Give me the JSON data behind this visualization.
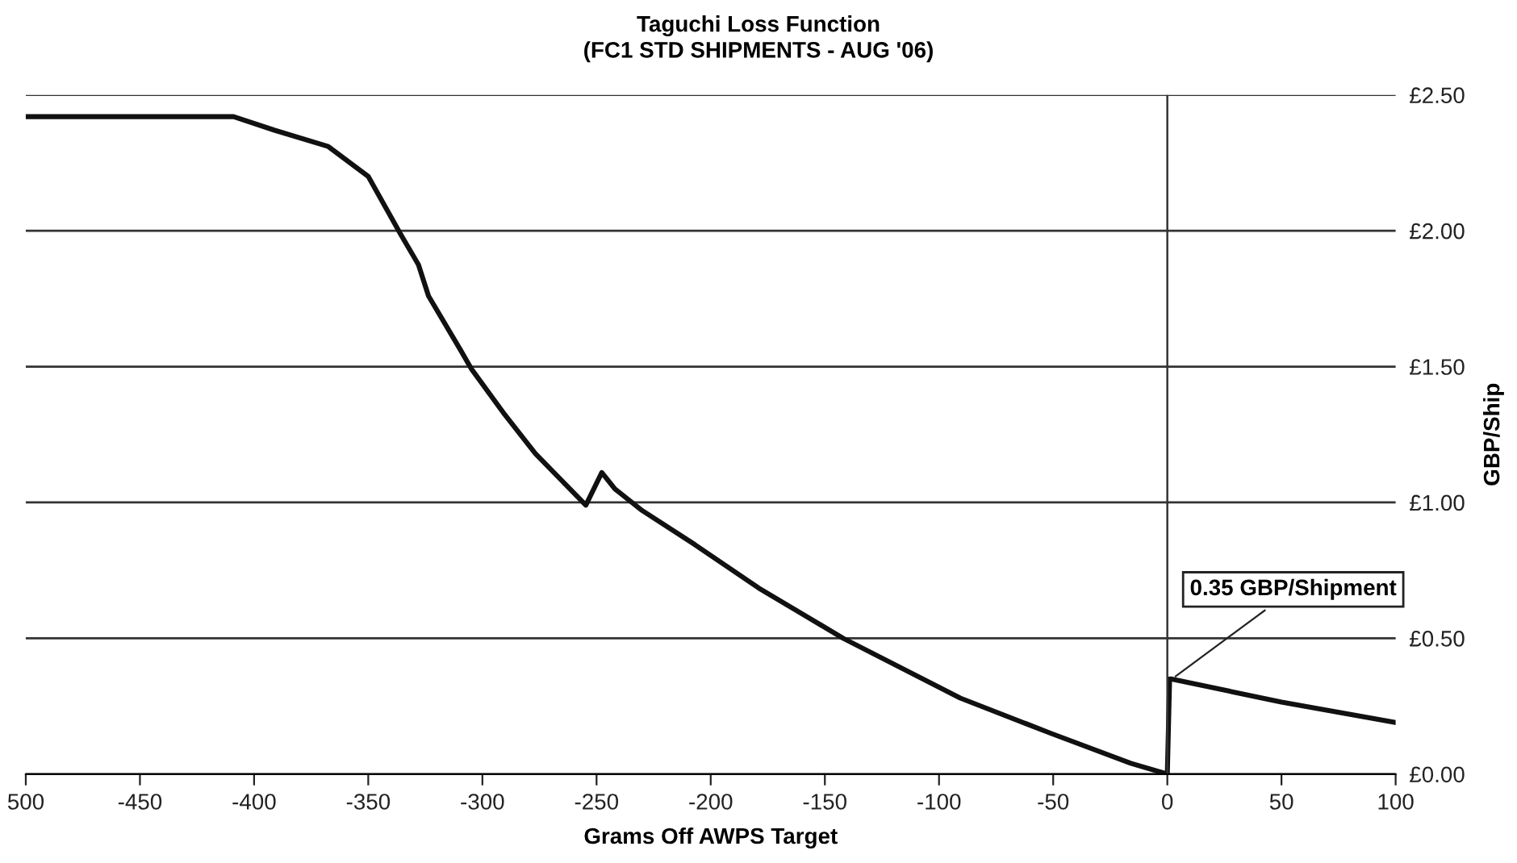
{
  "chart_data": {
    "type": "line",
    "title": "Taguchi Loss Function",
    "subtitle": "(FC1 STD SHIPMENTS - AUG '06)",
    "xlabel": "Grams Off AWPS Target",
    "ylabel": "GBP/Ship",
    "series": [
      {
        "color": "#111111",
        "x": [
          -500,
          -409,
          -391,
          -367.5,
          -350,
          -336,
          -328,
          -323.6,
          -309.5,
          -304.7,
          -290.8,
          -276.8,
          -254.7,
          -247.7,
          -242,
          -230,
          -207,
          -179,
          -142,
          -90.7,
          -51,
          -16,
          0,
          1,
          2,
          50,
          100
        ],
        "values": [
          2.42,
          2.42,
          2.37,
          2.31,
          2.2,
          1.99,
          1.875,
          1.76,
          1.56,
          1.49,
          1.33,
          1.18,
          0.99,
          1.11,
          1.05,
          0.97,
          0.845,
          0.685,
          0.5,
          0.28,
          0.15,
          0.04,
          0,
          0.35,
          0.35,
          0.265,
          0.19
        ]
      }
    ],
    "xlim": [
      -500,
      100
    ],
    "ylim": [
      0,
      2.5
    ],
    "xticks": [
      {
        "value": -500,
        "label": "500"
      },
      -450,
      -400,
      -350,
      -300,
      -250,
      -200,
      -150,
      -100,
      -50,
      0,
      50,
      100
    ],
    "yticks": [
      {
        "value": 0,
        "label": "£0.00"
      },
      {
        "value": 0.5,
        "label": "£0.50"
      },
      {
        "value": 1,
        "label": "£1.00"
      },
      {
        "value": 1.5,
        "label": "£1.50"
      },
      {
        "value": 2,
        "label": "£2.00"
      },
      {
        "value": 2.5,
        "label": "£2.50"
      }
    ],
    "grid": "y",
    "legend": false,
    "line_style": "solid",
    "marker": "none",
    "ref_lines": [
      {
        "axis": "x",
        "value": 0,
        "color": "#333333"
      }
    ],
    "annotations": [
      {
        "text": "0.35 GBP/Shipment",
        "x": 2,
        "y": 0.35
      }
    ]
  }
}
